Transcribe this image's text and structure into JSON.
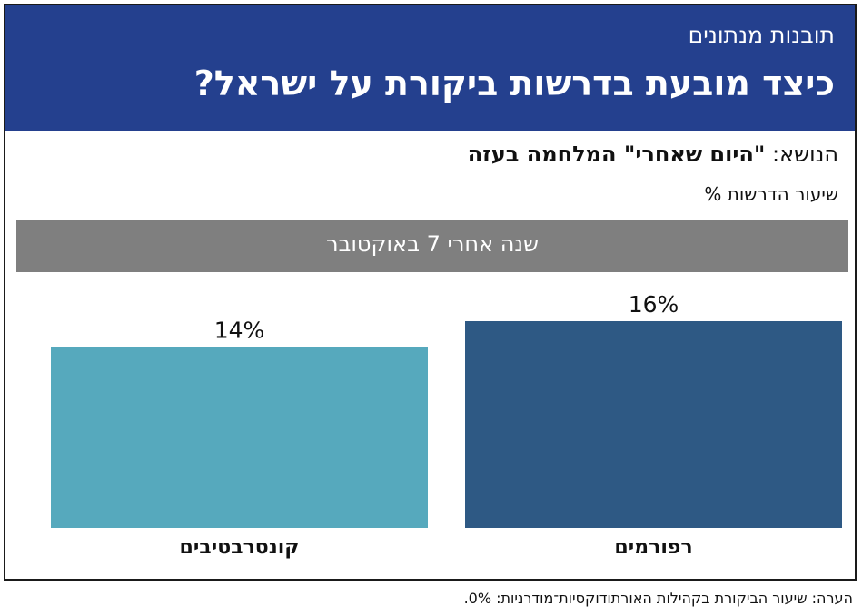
{
  "header": {
    "kicker": "תובנות מנתונים",
    "headline": "כיצד מובעת בדרשות ביקורת על ישראל?"
  },
  "topic": {
    "prefix": "הנושא: ",
    "subject": "\"היום שאחרי\" המלחמה בעזה"
  },
  "band_label": "שנה אחרי 7 באוקטובר",
  "note": "הערה: שיעור הביקורת בקהילות האורתודוקסיות־מודרניות: 0%.",
  "colors": {
    "header": "#24408e",
    "band": "#7f7f7f",
    "reform": "#2e5984",
    "conservative": "#56a9bd"
  },
  "chart_data": {
    "type": "bar",
    "ylabel": "שיעור הדרשות %",
    "categories": [
      "רפורמים",
      "קונסרבטיבים"
    ],
    "values": [
      16,
      14
    ],
    "value_labels": [
      "16%",
      "14%"
    ],
    "colors": [
      "#2e5984",
      "#56a9bd"
    ],
    "ylim": [
      0,
      16
    ],
    "grid": false,
    "legend": "none"
  }
}
